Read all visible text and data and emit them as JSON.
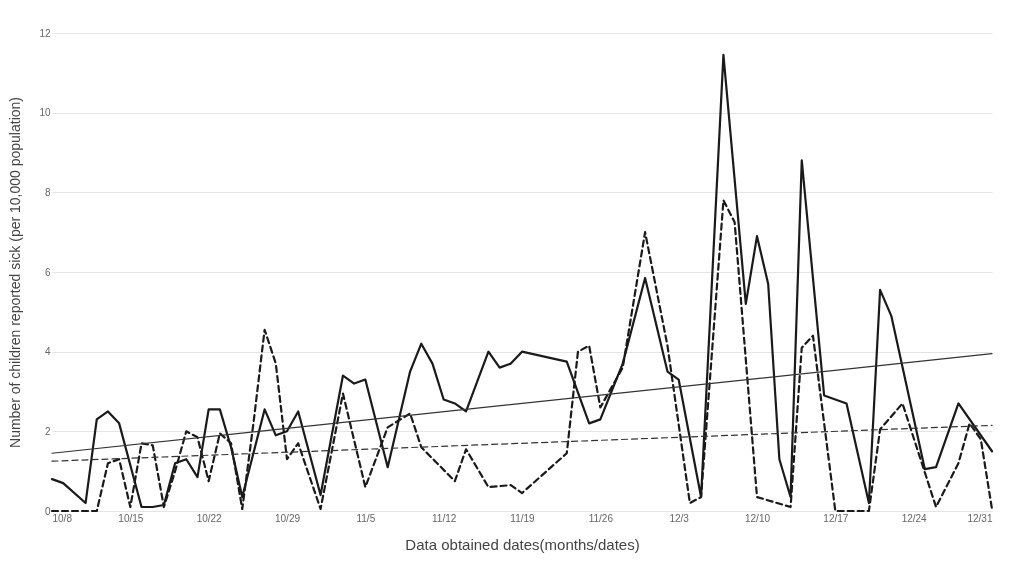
{
  "chart_data": {
    "type": "line",
    "xlabel": "Data obtained dates(months/dates)",
    "ylabel": "Number of children reported sick (per 10,000 population)",
    "ylim": [
      0,
      12
    ],
    "yticks": [
      0,
      2,
      4,
      6,
      8,
      10,
      12
    ],
    "xlim": [
      "--10-08",
      "--12-31"
    ],
    "xticks": [
      {
        "value": "--10-08",
        "label": "10/8"
      },
      {
        "value": "--10-15",
        "label": "10/15"
      },
      {
        "value": "--10-22",
        "label": "10/22"
      },
      {
        "value": "--10-29",
        "label": "10/29"
      },
      {
        "value": "--11-05",
        "label": "11/5"
      },
      {
        "value": "--11-12",
        "label": "11/12"
      },
      {
        "value": "--11-19",
        "label": "11/19"
      },
      {
        "value": "--11-26",
        "label": "11/26"
      },
      {
        "value": "--12-03",
        "label": "12/3"
      },
      {
        "value": "--12-10",
        "label": "12/10"
      },
      {
        "value": "--12-17",
        "label": "12/17"
      },
      {
        "value": "--12-24",
        "label": "12/24"
      },
      {
        "value": "--12-31",
        "label": "12/31"
      }
    ],
    "grid": "y",
    "legend": false,
    "marker": "none",
    "series": [
      {
        "color": "#1a1a1a",
        "line_style": "solid",
        "x": [
          "--10-08",
          "--10-09",
          "--10-11",
          "--10-12",
          "--10-13",
          "--10-14",
          "--10-16",
          "--10-17",
          "--10-18",
          "--10-19",
          "--10-20",
          "--10-21",
          "--10-22",
          "--10-23",
          "--10-24",
          "--10-25",
          "--10-27",
          "--10-28",
          "--10-29",
          "--10-30",
          "--11-01",
          "--11-03",
          "--11-04",
          "--11-05",
          "--11-07",
          "--11-09",
          "--11-10",
          "--11-11",
          "--11-12",
          "--11-13",
          "--11-14",
          "--11-16",
          "--11-17",
          "--11-18",
          "--11-19",
          "--11-23",
          "--11-25",
          "--11-26",
          "--11-28",
          "--11-30",
          "--12-02",
          "--12-03",
          "--12-05",
          "--12-07",
          "--12-09",
          "--12-10",
          "--12-11",
          "--12-12",
          "--12-13",
          "--12-14",
          "--12-16",
          "--12-18",
          "--12-20",
          "--12-21",
          "--12-22",
          "--12-25",
          "--12-26",
          "--12-28",
          "--12-31"
        ],
        "values": [
          0.8,
          0.7,
          0.2,
          2.3,
          2.5,
          2.2,
          0.1,
          0.1,
          0.15,
          1.2,
          1.3,
          0.85,
          2.55,
          2.55,
          1.6,
          0.35,
          2.55,
          1.9,
          2.0,
          2.5,
          0.4,
          3.4,
          3.2,
          3.3,
          1.1,
          3.5,
          4.2,
          3.7,
          2.8,
          2.7,
          2.5,
          4.0,
          3.6,
          3.7,
          4.0,
          3.75,
          2.2,
          2.3,
          3.7,
          5.85,
          3.5,
          3.3,
          0.35,
          11.45,
          5.2,
          6.9,
          5.7,
          1.3,
          0.35,
          8.8,
          2.9,
          2.7,
          0.2,
          5.55,
          4.9,
          1.05,
          1.1,
          2.7,
          1.5
        ]
      },
      {
        "color": "#1a1a1a",
        "line_style": "dashed",
        "x": [
          "--10-08",
          "--10-12",
          "--10-13",
          "--10-14",
          "--10-15",
          "--10-16",
          "--10-17",
          "--10-18",
          "--10-19",
          "--10-20",
          "--10-21",
          "--10-22",
          "--10-23",
          "--10-24",
          "--10-25",
          "--10-26",
          "--10-27",
          "--10-28",
          "--10-29",
          "--10-30",
          "--11-01",
          "--11-03",
          "--11-05",
          "--11-07",
          "--11-09",
          "--11-10",
          "--11-13",
          "--11-14",
          "--11-16",
          "--11-18",
          "--11-19",
          "--11-23",
          "--11-24",
          "--11-25",
          "--11-26",
          "--11-28",
          "--11-30",
          "--12-02",
          "--12-04",
          "--12-05",
          "--12-07",
          "--12-08",
          "--12-10",
          "--12-13",
          "--12-14",
          "--12-15",
          "--12-17",
          "--12-20",
          "--12-21",
          "--12-23",
          "--12-26",
          "--12-28",
          "--12-29",
          "--12-30",
          "--12-31"
        ],
        "values": [
          0,
          0,
          1.2,
          1.3,
          0.1,
          1.7,
          1.65,
          0.1,
          1.0,
          2.0,
          1.85,
          0.75,
          1.95,
          1.7,
          0.05,
          2.2,
          4.55,
          3.7,
          1.3,
          1.7,
          0.05,
          2.95,
          0.6,
          2.1,
          2.45,
          1.6,
          0.75,
          1.55,
          0.6,
          0.65,
          0.45,
          1.45,
          4.0,
          4.15,
          2.6,
          3.6,
          7.0,
          4.15,
          0.2,
          0.35,
          7.8,
          7.25,
          0.35,
          0.1,
          4.1,
          4.4,
          0,
          0,
          2.05,
          2.7,
          0.1,
          1.2,
          2.2,
          1.8,
          0.05
        ]
      },
      {
        "color": "#333333",
        "line_style": "solid",
        "x": [
          "--10-08",
          "--12-31"
        ],
        "values": [
          1.45,
          3.95
        ]
      },
      {
        "color": "#333333",
        "line_style": "dashed",
        "x": [
          "--10-08",
          "--12-31"
        ],
        "values": [
          1.25,
          2.15
        ]
      }
    ]
  }
}
